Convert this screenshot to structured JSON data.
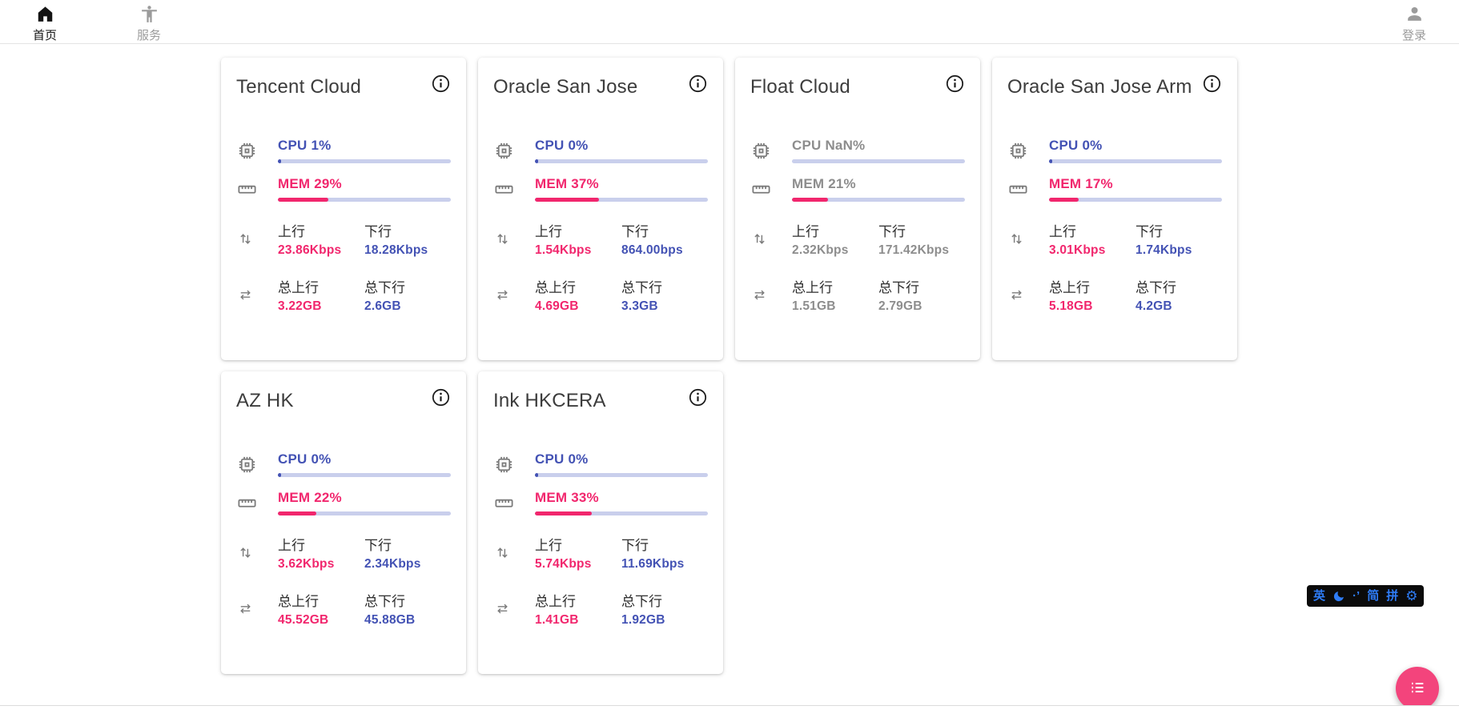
{
  "nav": {
    "items": [
      {
        "label": "首页",
        "icon": "home-icon",
        "active": true
      },
      {
        "label": "服务",
        "icon": "accessibility-icon",
        "active": false
      }
    ],
    "login": {
      "label": "登录",
      "icon": "person-icon"
    }
  },
  "labels": {
    "cpu": "CPU",
    "mem": "MEM",
    "up": "上行",
    "down": "下行",
    "total_up": "总上行",
    "total_down": "总下行"
  },
  "servers": [
    {
      "name": "Tencent Cloud",
      "cpu": "1%",
      "cpu_pct": 1,
      "mem": "29%",
      "mem_pct": 29,
      "up": "23.86Kbps",
      "down": "18.28Kbps",
      "total_up": "3.22GB",
      "total_down": "2.6GB",
      "online": true
    },
    {
      "name": "Oracle San Jose",
      "cpu": "0%",
      "cpu_pct": 0,
      "mem": "37%",
      "mem_pct": 37,
      "up": "1.54Kbps",
      "down": "864.00bps",
      "total_up": "4.69GB",
      "total_down": "3.3GB",
      "online": true
    },
    {
      "name": "Float Cloud",
      "cpu": "NaN%",
      "cpu_pct": null,
      "mem": "21%",
      "mem_pct": 21,
      "up": "2.32Kbps",
      "down": "171.42Kbps",
      "total_up": "1.51GB",
      "total_down": "2.79GB",
      "online": false
    },
    {
      "name": "Oracle San Jose Arm",
      "cpu": "0%",
      "cpu_pct": 0,
      "mem": "17%",
      "mem_pct": 17,
      "up": "3.01Kbps",
      "down": "1.74Kbps",
      "total_up": "5.18GB",
      "total_down": "4.2GB",
      "online": true
    },
    {
      "name": "AZ HK",
      "cpu": "0%",
      "cpu_pct": 0,
      "mem": "22%",
      "mem_pct": 22,
      "up": "3.62Kbps",
      "down": "2.34Kbps",
      "total_up": "45.52GB",
      "total_down": "45.88GB",
      "online": true
    },
    {
      "name": "Ink HKCERA",
      "cpu": "0%",
      "cpu_pct": 0,
      "mem": "33%",
      "mem_pct": 33,
      "up": "5.74Kbps",
      "down": "11.69Kbps",
      "total_up": "1.41GB",
      "total_down": "1.92GB",
      "online": true
    }
  ],
  "ime": {
    "lang": "英",
    "punct": "·’",
    "simplified": "简",
    "pinyin": "拼",
    "gear": "⚙"
  },
  "colors": {
    "pink": "#f1266d",
    "indigo": "#4352b4",
    "track": "#c9cfec",
    "fab": "#f3447c",
    "ime_blue": "#2e7cf6",
    "icon_gray": "#7b7b7b"
  }
}
